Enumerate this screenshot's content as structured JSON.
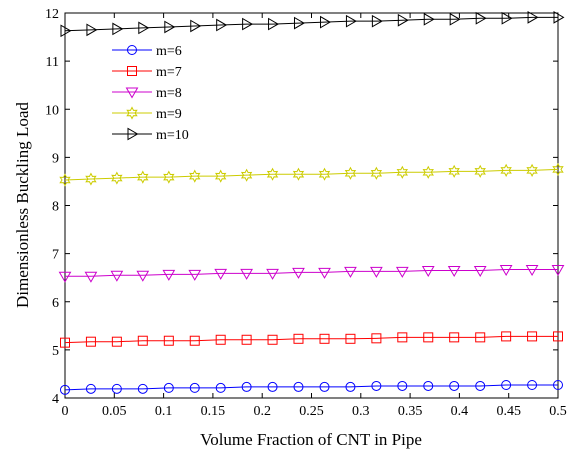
{
  "chart_data": {
    "type": "line",
    "title": "",
    "xlabel": "Volume Fraction of CNT in Pipe",
    "ylabel": "Dimensionless Buckling Load",
    "xlim": [
      0,
      0.5
    ],
    "ylim": [
      4,
      12
    ],
    "xticks": [
      0,
      0.05,
      0.1,
      0.15,
      0.2,
      0.25,
      0.3,
      0.35,
      0.4,
      0.45,
      0.5
    ],
    "xtick_labels": [
      "0",
      "0.05",
      "0.1",
      "0.15",
      "0.2",
      "0.25",
      "0.3",
      "0.35",
      "0.4",
      "0.45",
      "0.5"
    ],
    "yticks": [
      4,
      5,
      6,
      7,
      8,
      9,
      10,
      11,
      12
    ],
    "ytick_labels": [
      "4",
      "5",
      "6",
      "7",
      "8",
      "9",
      "10",
      "11",
      "12"
    ],
    "grid": false,
    "legend_position": "top-left",
    "x": [
      0,
      0.0263,
      0.0526,
      0.0789,
      0.1053,
      0.1316,
      0.1579,
      0.1842,
      0.2105,
      0.2368,
      0.2632,
      0.2895,
      0.3158,
      0.3421,
      0.3684,
      0.3947,
      0.4211,
      0.4474,
      0.4737,
      0.5
    ],
    "series": [
      {
        "name": "m=6",
        "color": "#0000ff",
        "marker": "circle",
        "values": [
          4.17,
          4.19,
          4.19,
          4.19,
          4.21,
          4.21,
          4.21,
          4.23,
          4.23,
          4.23,
          4.23,
          4.23,
          4.25,
          4.25,
          4.25,
          4.25,
          4.25,
          4.27,
          4.27,
          4.27
        ]
      },
      {
        "name": "m=7",
        "color": "#ff0000",
        "marker": "square",
        "values": [
          5.15,
          5.17,
          5.17,
          5.19,
          5.19,
          5.19,
          5.21,
          5.21,
          5.21,
          5.23,
          5.23,
          5.23,
          5.24,
          5.26,
          5.26,
          5.26,
          5.26,
          5.28,
          5.28,
          5.28
        ]
      },
      {
        "name": "m=8",
        "color": "#cc00cc",
        "marker": "triangle-down",
        "values": [
          6.53,
          6.53,
          6.55,
          6.55,
          6.57,
          6.57,
          6.59,
          6.59,
          6.59,
          6.61,
          6.61,
          6.63,
          6.63,
          6.63,
          6.65,
          6.65,
          6.65,
          6.67,
          6.67,
          6.67
        ]
      },
      {
        "name": "m=9",
        "color": "#cccc00",
        "marker": "hexagram",
        "values": [
          8.53,
          8.55,
          8.57,
          8.59,
          8.59,
          8.61,
          8.61,
          8.63,
          8.65,
          8.65,
          8.65,
          8.67,
          8.67,
          8.69,
          8.69,
          8.71,
          8.71,
          8.73,
          8.73,
          8.75
        ]
      },
      {
        "name": "m=10",
        "color": "#000000",
        "marker": "triangle-right",
        "values": [
          11.63,
          11.65,
          11.67,
          11.69,
          11.71,
          11.73,
          11.75,
          11.77,
          11.77,
          11.79,
          11.81,
          11.83,
          11.83,
          11.85,
          11.87,
          11.87,
          11.89,
          11.89,
          11.91,
          11.91
        ]
      }
    ]
  }
}
